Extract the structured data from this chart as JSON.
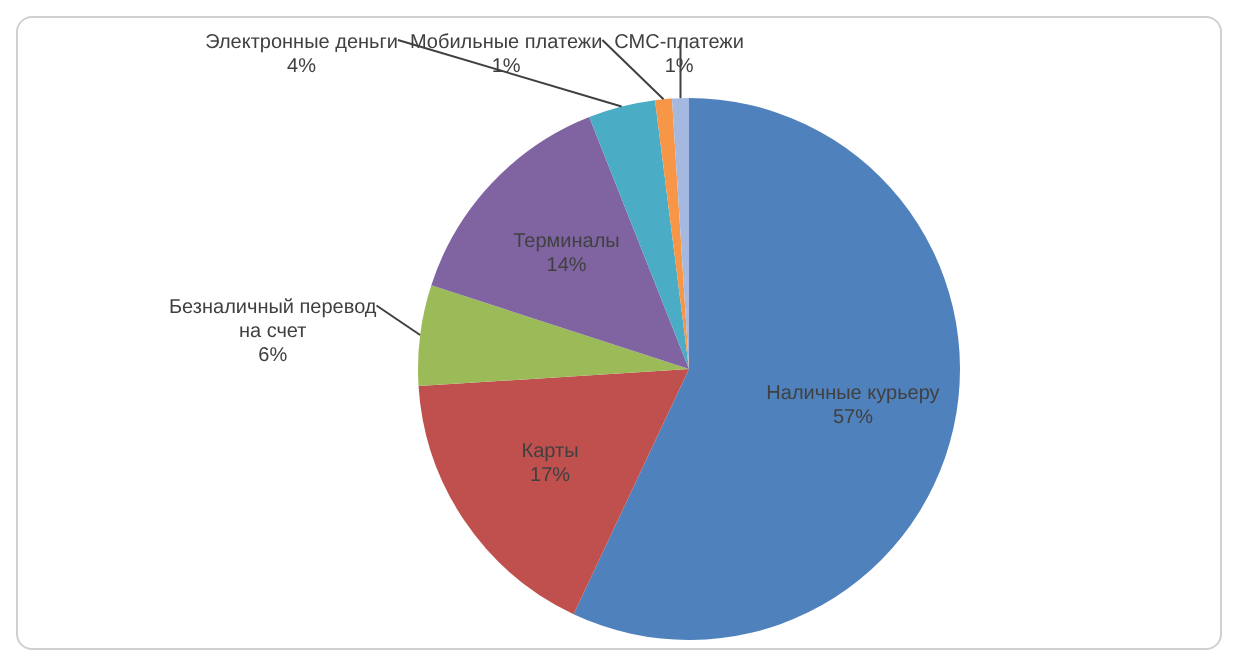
{
  "chart_data": {
    "type": "pie",
    "categories": [
      "Наличные курьеру",
      "Карты",
      "Безналичный перевод на счет",
      "Терминалы",
      "Электронные деньги",
      "Мобильные платежи",
      "СМС-платежи"
    ],
    "values": [
      57,
      17,
      6,
      14,
      4,
      1,
      1
    ],
    "colors": [
      "#4f81bd",
      "#c0504d",
      "#9bbb59",
      "#8064a2",
      "#4bacc6",
      "#f79646",
      "#a5b9e0"
    ],
    "value_labels": [
      "57%",
      "17%",
      "6%",
      "14%",
      "4%",
      "1%",
      "1%"
    ],
    "legend": false
  }
}
